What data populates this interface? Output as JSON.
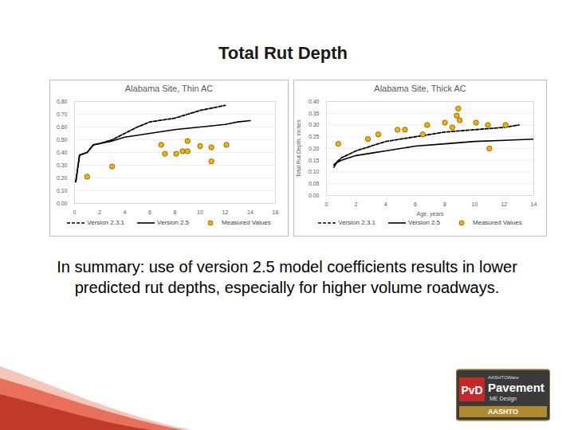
{
  "slide": {
    "title": "Total Rut Depth",
    "summary": "In summary:  use of version 2.5 model coefficients results in lower predicted rut depths, especially for higher volume roadways.",
    "logo": [
      "PvD",
      "AASHTOWare",
      "Pavement",
      "ME Design",
      "AASHTO"
    ]
  },
  "chart_data": [
    {
      "type": "line",
      "title": "Alabama Site, Thin AC",
      "x_label": null,
      "y_label": null,
      "xlim": [
        0,
        16
      ],
      "xticks": [
        0,
        2,
        4,
        6,
        8,
        10,
        12,
        14,
        16
      ],
      "ylim": [
        0,
        0.8
      ],
      "yticks": [
        {
          "value": 0,
          "label": "0.00"
        },
        {
          "value": 0.1,
          "label": "0.10"
        },
        {
          "value": 0.2,
          "label": "0.20"
        },
        {
          "value": 0.3,
          "label": "0.30"
        },
        {
          "value": 0.4,
          "label": "0.40"
        },
        {
          "value": 0.5,
          "label": "0.50"
        },
        {
          "value": 0.6,
          "label": "0.60"
        },
        {
          "value": 0.7,
          "label": "0.70"
        },
        {
          "value": 0.8,
          "label": "0.80"
        }
      ],
      "grid": true,
      "legend": "bottom",
      "series": [
        {
          "name": "Version 2.3.1",
          "type": "line",
          "color": "#000000",
          "line_style": "dashed",
          "x": [
            0.1,
            0.4,
            1.0,
            1.5,
            2.0,
            3.0,
            4.0,
            5.0,
            6.0,
            8.0,
            9.0,
            10.0,
            11.0,
            12.0
          ],
          "values": [
            0.17,
            0.38,
            0.4,
            0.46,
            0.47,
            0.5,
            0.55,
            0.6,
            0.64,
            0.67,
            0.7,
            0.73,
            0.75,
            0.77
          ]
        },
        {
          "name": "Version 2.5",
          "type": "line",
          "color": "#000000",
          "line_style": "solid",
          "x": [
            0.1,
            0.4,
            1.0,
            1.5,
            2.0,
            3.0,
            4.0,
            6.0,
            8.0,
            10.0,
            12.0,
            13.0,
            14.0
          ],
          "values": [
            0.17,
            0.38,
            0.4,
            0.46,
            0.47,
            0.49,
            0.52,
            0.55,
            0.58,
            0.6,
            0.62,
            0.64,
            0.65
          ]
        },
        {
          "name": "Measured Values",
          "type": "scatter",
          "color": "#f0b400",
          "marker": "circle",
          "x": [
            1.0,
            3.0,
            6.9,
            7.2,
            8.1,
            8.6,
            9.0,
            9.0,
            10.0,
            10.9,
            10.9,
            12.1
          ],
          "values": [
            0.21,
            0.29,
            0.46,
            0.39,
            0.39,
            0.41,
            0.41,
            0.49,
            0.45,
            0.44,
            0.33,
            0.46
          ]
        }
      ]
    },
    {
      "type": "line",
      "title": "Alabama Site, Thick AC",
      "x_label": "Age, years",
      "y_label": "Total Rut Depth, inches",
      "xlim": [
        0,
        14
      ],
      "xticks": [
        0,
        2,
        4,
        6,
        8,
        10,
        12,
        14
      ],
      "ylim": [
        0,
        0.4
      ],
      "yticks": [
        {
          "value": 0,
          "label": "0.00"
        },
        {
          "value": 0.05,
          "label": "0.05"
        },
        {
          "value": 0.1,
          "label": "0.10"
        },
        {
          "value": 0.15,
          "label": "0.15"
        },
        {
          "value": 0.2,
          "label": "0.20"
        },
        {
          "value": 0.25,
          "label": "0.25"
        },
        {
          "value": 0.3,
          "label": "0.30"
        },
        {
          "value": 0.35,
          "label": "0.35"
        },
        {
          "value": 0.4,
          "label": "0.40"
        }
      ],
      "grid": true,
      "legend": "bottom",
      "series": [
        {
          "name": "Version 2.3.1",
          "type": "line",
          "color": "#000000",
          "line_style": "dashed",
          "x": [
            0.5,
            1.0,
            2.0,
            3.0,
            4.0,
            5.0,
            6.0,
            8.0,
            10.0,
            12.0,
            13.0
          ],
          "values": [
            0.13,
            0.16,
            0.19,
            0.21,
            0.23,
            0.24,
            0.25,
            0.27,
            0.28,
            0.29,
            0.3
          ]
        },
        {
          "name": "Version 2.5",
          "type": "line",
          "color": "#000000",
          "line_style": "solid",
          "x": [
            0.5,
            0.7,
            1.0,
            1.5,
            2.0,
            3.0,
            4.0,
            5.0,
            6.0,
            8.0,
            10.0,
            12.0,
            14.0
          ],
          "values": [
            0.12,
            0.14,
            0.15,
            0.16,
            0.17,
            0.18,
            0.19,
            0.2,
            0.21,
            0.22,
            0.23,
            0.235,
            0.24
          ]
        },
        {
          "name": "Measured Values",
          "type": "scatter",
          "color": "#f0b400",
          "marker": "circle",
          "x": [
            0.8,
            2.8,
            3.5,
            4.8,
            5.3,
            6.5,
            6.8,
            8.0,
            8.5,
            8.8,
            8.9,
            9.0,
            10.1,
            10.9,
            11.0,
            12.1
          ],
          "values": [
            0.22,
            0.24,
            0.26,
            0.28,
            0.28,
            0.26,
            0.3,
            0.31,
            0.29,
            0.34,
            0.37,
            0.32,
            0.31,
            0.3,
            0.2,
            0.3
          ]
        }
      ]
    }
  ]
}
